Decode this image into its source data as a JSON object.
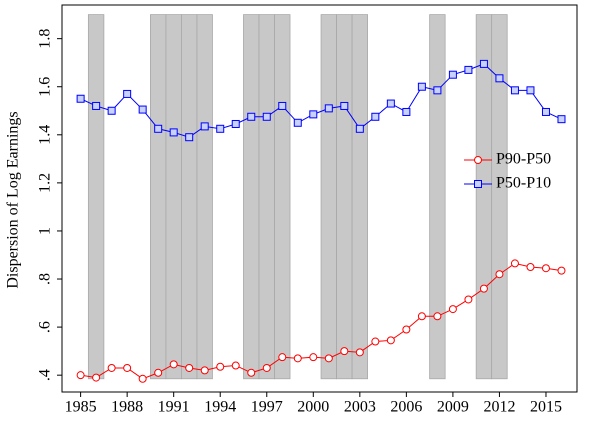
{
  "chart_data": {
    "type": "line",
    "y_label": "Dispersion of Log Earnings",
    "x": [
      1985,
      1986,
      1987,
      1988,
      1989,
      1990,
      1991,
      1992,
      1993,
      1994,
      1995,
      1996,
      1997,
      1998,
      1999,
      2000,
      2001,
      2002,
      2003,
      2004,
      2005,
      2006,
      2007,
      2008,
      2009,
      2010,
      2011,
      2012,
      2013,
      2014,
      2015,
      2016
    ],
    "series": [
      {
        "name": "P90-P50",
        "color": "#ff0000",
        "marker": "circle",
        "values": [
          0.4,
          0.39,
          0.43,
          0.43,
          0.385,
          0.41,
          0.445,
          0.43,
          0.42,
          0.435,
          0.44,
          0.41,
          0.43,
          0.475,
          0.47,
          0.475,
          0.47,
          0.5,
          0.495,
          0.54,
          0.545,
          0.59,
          0.645,
          0.645,
          0.675,
          0.715,
          0.76,
          0.82,
          0.865,
          0.85,
          0.845,
          0.835
        ]
      },
      {
        "name": "P50-P10",
        "color": "#0000ff",
        "marker": "square",
        "values": [
          1.55,
          1.52,
          1.5,
          1.57,
          1.505,
          1.425,
          1.41,
          1.39,
          1.435,
          1.425,
          1.445,
          1.475,
          1.475,
          1.52,
          1.45,
          1.485,
          1.51,
          1.52,
          1.425,
          1.475,
          1.53,
          1.495,
          1.6,
          1.585,
          1.65,
          1.67,
          1.695,
          1.635,
          1.585,
          1.585,
          1.495,
          1.465
        ]
      }
    ],
    "shaded": {
      "color": "#c8c8c8",
      "x": [
        1986,
        1990,
        1991,
        1992,
        1993,
        1996,
        1997,
        1998,
        2001,
        2002,
        2003,
        2008,
        2011,
        2012
      ],
      "top": 1.9,
      "bottom": 0.385
    },
    "xlim": [
      1983.8,
      2017
    ],
    "ylim": [
      0.33,
      1.94
    ],
    "xticks": [
      1985,
      1988,
      1991,
      1994,
      1997,
      2000,
      2003,
      2006,
      2009,
      2012,
      2015
    ],
    "yticks": [
      {
        "value": 0.4,
        "label": ".4"
      },
      {
        "value": 0.6,
        "label": ".6"
      },
      {
        "value": 0.8,
        "label": ".8"
      },
      1,
      1.2,
      1.4,
      1.6,
      1.8
    ],
    "legend": "right"
  }
}
